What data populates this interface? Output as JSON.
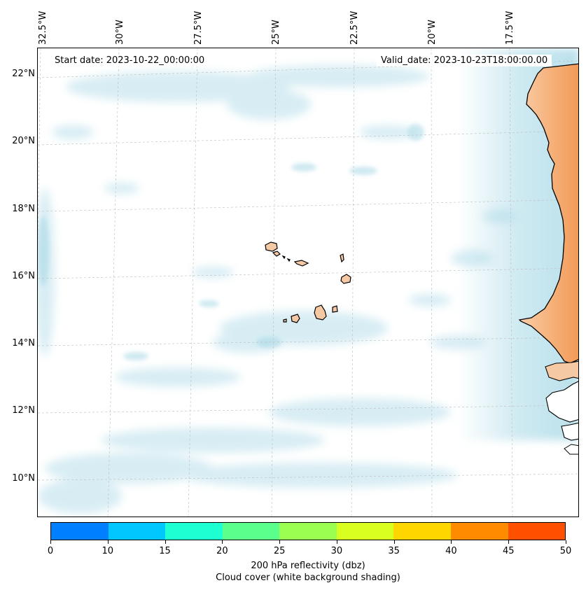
{
  "header": {
    "start_date": "Start date: 2023-10-22_00:00:00",
    "valid_date": "Valid_date: 2023-10-23T18:00:00.00"
  },
  "axes": {
    "latitude_labels": [
      "22°N",
      "20°N",
      "18°N",
      "16°N",
      "14°N",
      "12°N",
      "10°N"
    ],
    "longitude_labels": [
      "32.5°W",
      "30°W",
      "27.5°W",
      "25°W",
      "22.5°W",
      "20°W",
      "17.5°W"
    ]
  },
  "colors": {
    "land": "#f4a261",
    "islands": "#f6c9a5",
    "cloud": "#a8d8e6",
    "gridline": "#bbbbbb",
    "coastline": "#000000"
  },
  "colorbar": {
    "ticks": [
      "0",
      "10",
      "15",
      "20",
      "25",
      "30",
      "35",
      "40",
      "45",
      "50"
    ],
    "colors": [
      "#0080ff",
      "#00c8ff",
      "#1effd2",
      "#5aff8c",
      "#9aff50",
      "#d8ff20",
      "#ffd600",
      "#ff8c00",
      "#ff5000"
    ],
    "label_line1": "200 hPa reflectivity (dbz)",
    "label_line2": "Cloud cover (white background shading)"
  }
}
